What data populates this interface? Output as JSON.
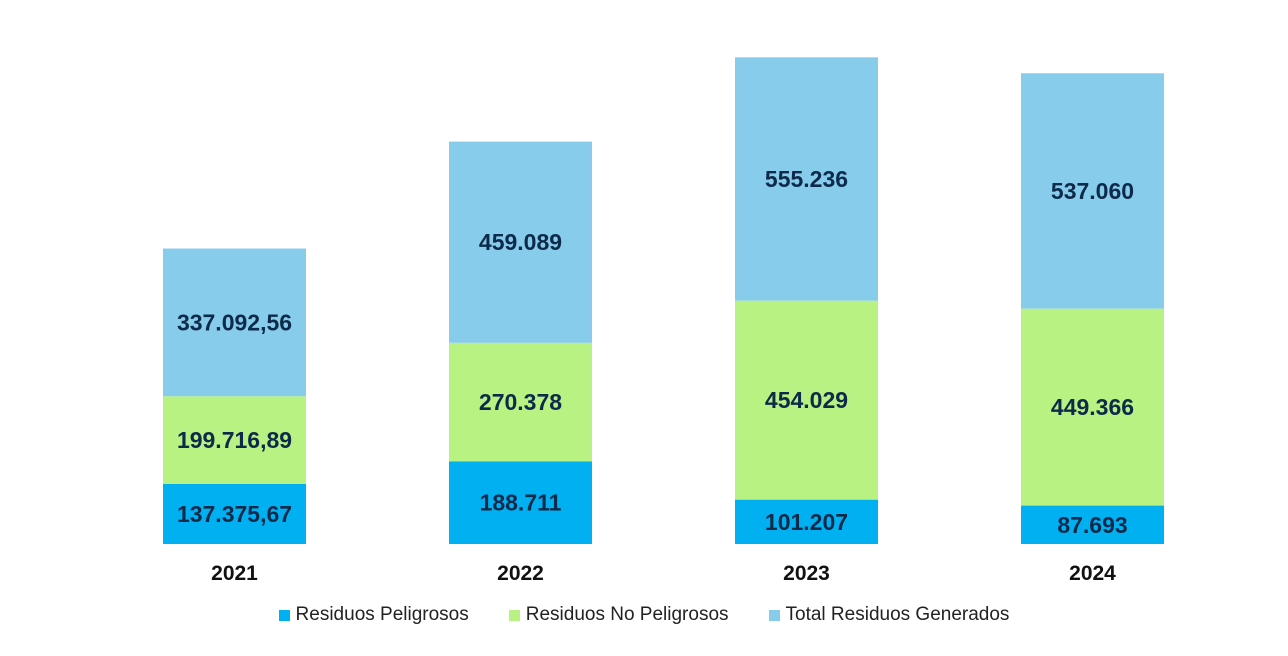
{
  "chart_data": {
    "type": "bar",
    "stacked": true,
    "categories": [
      "2021",
      "2022",
      "2023",
      "2024"
    ],
    "series": [
      {
        "name": "Residuos Peligrosos",
        "color": "#00B0F0",
        "values": [
          137375.67,
          188711,
          101207,
          87693
        ],
        "labels": [
          "137.375,67",
          "188.711",
          "101.207",
          "87.693"
        ]
      },
      {
        "name": "Residuos No Peligrosos",
        "color": "#B8F283",
        "values": [
          199716.89,
          270378,
          454029,
          449366
        ],
        "labels": [
          "199.716,89",
          "270.378",
          "454.029",
          "449.366"
        ]
      },
      {
        "name": "Total Residuos Generados",
        "color": "#87CCEA",
        "values": [
          337092.56,
          459089,
          555236,
          537060
        ],
        "labels": [
          "337.092,56",
          "459.089",
          "555.236",
          "537.060"
        ]
      }
    ],
    "label_color": "#0D2A4A",
    "legend_position": "bottom",
    "grid": false,
    "ylim": [
      0,
      1150000
    ]
  }
}
